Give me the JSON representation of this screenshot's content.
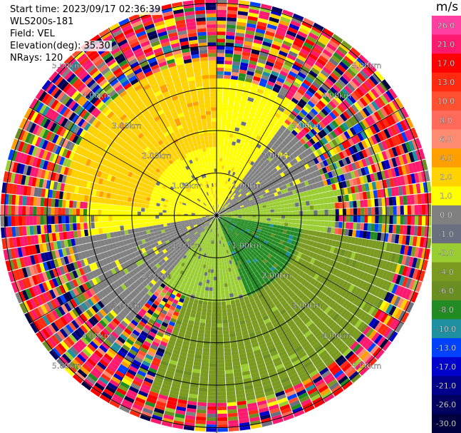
{
  "info": {
    "start_time": "Start time: 2023/09/17 02:36:39",
    "instrument": "WLS200s-181",
    "field": "Field: VEL",
    "elevation": "Elevation(deg): 35.30",
    "nrays": "NRays: 120"
  },
  "chart_data": {
    "type": "ppi",
    "field": "VEL",
    "units": "m/s",
    "n_rays": 120,
    "elevation_deg": 35.3,
    "range_rings_km": [
      1.0,
      2.0,
      3.0,
      4.0,
      5.0
    ],
    "range_ring_labels": [
      "1.00km",
      "2.00km",
      "3.00km",
      "4.00km",
      "5.00km"
    ],
    "spokes_deg": [
      0,
      30,
      60,
      90,
      120,
      150,
      180,
      210,
      240,
      270,
      300,
      330
    ],
    "colorbar": {
      "ticks": [
        "26.0",
        "21.0",
        "17.0",
        "13.0",
        "10.0",
        "8.0",
        "6.0",
        "4.0",
        "2.0",
        "1.0",
        "0.0",
        "-1.0",
        "-2.0",
        "-4.0",
        "-6.0",
        "-8.0",
        "-10.0",
        "-13.0",
        "-17.0",
        "-21.0",
        "-26.0",
        "-30.0"
      ],
      "bands": [
        {
          "from": 30,
          "to": 26,
          "color": "#ff40a0"
        },
        {
          "from": 26,
          "to": 21,
          "color": "#ff1a70"
        },
        {
          "from": 21,
          "to": 17,
          "color": "#ff0000"
        },
        {
          "from": 17,
          "to": 13,
          "color": "#ff2a10"
        },
        {
          "from": 13,
          "to": 10,
          "color": "#ff5030"
        },
        {
          "from": 10,
          "to": 8,
          "color": "#ff6a5a"
        },
        {
          "from": 8,
          "to": 6,
          "color": "#ff8c70"
        },
        {
          "from": 6,
          "to": 4,
          "color": "#ffa000"
        },
        {
          "from": 4,
          "to": 2,
          "color": "#ffd200"
        },
        {
          "from": 2,
          "to": 1,
          "color": "#ffff00"
        },
        {
          "from": 1,
          "to": 0,
          "color": "#808080"
        },
        {
          "from": 0,
          "to": -1,
          "color": "#6a7080"
        },
        {
          "from": -1,
          "to": -2,
          "color": "#9acd32"
        },
        {
          "from": -2,
          "to": -4,
          "color": "#7a9a20"
        },
        {
          "from": -4,
          "to": -6,
          "color": "#6b8e23"
        },
        {
          "from": -6,
          "to": -8,
          "color": "#228b22"
        },
        {
          "from": -8,
          "to": -10,
          "color": "#1e90a0"
        },
        {
          "from": -10,
          "to": -13,
          "color": "#0040ff"
        },
        {
          "from": -13,
          "to": -17,
          "color": "#0000cd"
        },
        {
          "from": -17,
          "to": -21,
          "color": "#00008b"
        },
        {
          "from": -21,
          "to": -26,
          "color": "#000060"
        },
        {
          "from": -26,
          "to": -30,
          "color": "#000040"
        }
      ]
    },
    "regions": [
      {
        "az_from": 0,
        "az_to": 35,
        "range_km": [
          0,
          3.2
        ],
        "value": 1.5
      },
      {
        "az_from": 270,
        "az_to": 360,
        "range_km": [
          0,
          1.6
        ],
        "value": 1.5
      },
      {
        "az_from": 275,
        "az_to": 360,
        "range_km": [
          1.6,
          3.6
        ],
        "value": 3.0
      },
      {
        "az_from": 35,
        "az_to": 75,
        "range_km": [
          0,
          2.6
        ],
        "value": 0.5
      },
      {
        "az_from": 75,
        "az_to": 100,
        "range_km": [
          0,
          2.8
        ],
        "value": -1.5
      },
      {
        "az_from": 100,
        "az_to": 160,
        "range_km": [
          0,
          2.0
        ],
        "value": -7.0
      },
      {
        "az_from": 100,
        "az_to": 200,
        "range_km": [
          2.0,
          4.4
        ],
        "value": -3.0
      },
      {
        "az_from": 160,
        "az_to": 220,
        "range_km": [
          0,
          2.0
        ],
        "value": -1.5
      },
      {
        "az_from": 220,
        "az_to": 260,
        "range_km": [
          0,
          3.4
        ],
        "value": 0.5
      },
      {
        "az_from": 255,
        "az_to": 275,
        "range_km": [
          0,
          3.0
        ],
        "value": 1.5
      }
    ],
    "noise_values": [
      26,
      23,
      19,
      15,
      11,
      9,
      7,
      5,
      3,
      1.5,
      0.5,
      -0.5,
      -1.5,
      -3,
      -5,
      -7,
      -9,
      -11,
      -15,
      -19,
      -23,
      -28
    ]
  }
}
